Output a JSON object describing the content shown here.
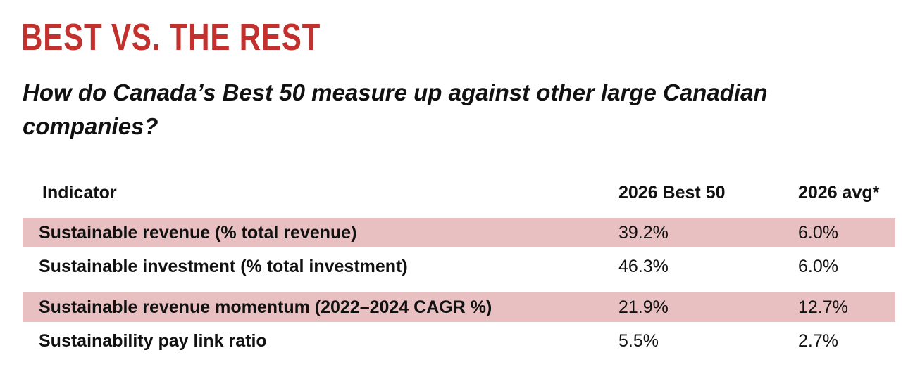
{
  "header": {
    "title": "BEST VS. THE REST",
    "subtitle": "How do Canada’s Best 50 measure up against other large Canadian companies?"
  },
  "table": {
    "columns": [
      "Indicator",
      "2026 Best 50",
      "2026 avg*"
    ],
    "rows": [
      [
        "Sustainable revenue (% total revenue)",
        "39.2%",
        "6.0%"
      ],
      [
        "Sustainable investment (% total investment)",
        "46.3%",
        "6.0%"
      ],
      [
        "Sustainable revenue momentum (2022–2024 CAGR %)",
        "21.9%",
        "12.7%"
      ],
      [
        "Sustainability pay link ratio",
        "5.5%",
        "2.7%"
      ]
    ]
  }
}
